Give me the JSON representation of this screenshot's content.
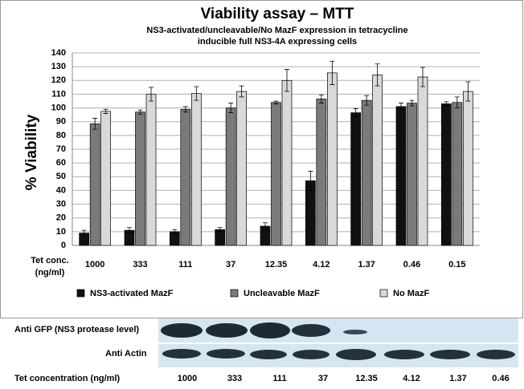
{
  "chart_data": {
    "type": "bar",
    "title": "Viability assay – MTT",
    "subtitle": [
      "NS3-activated/uncleavable/No MazF expression in tetracycline",
      "inducible full NS3-4A expressing cells"
    ],
    "y_label": "% Viability",
    "x_label": [
      "Tet conc.",
      "(ng/ml)"
    ],
    "categories": [
      "1000",
      "333",
      "111",
      "37",
      "12.35",
      "4.12",
      "1.37",
      "0.46",
      "0.15"
    ],
    "series": [
      {
        "name": "NS3-activated MazF",
        "color": "#111111",
        "values": [
          9,
          11,
          10,
          11.5,
          14,
          47,
          96.5,
          101,
          103
        ],
        "errors": [
          2,
          2,
          1.5,
          1.5,
          2.5,
          7,
          3,
          2.5,
          1.5
        ]
      },
      {
        "name": "Uncleavable MazF",
        "color": "#7a7a7a",
        "values": [
          88.5,
          97,
          99,
          100,
          104,
          106.5,
          105.5,
          103.5,
          104
        ],
        "errors": [
          4,
          1.5,
          2,
          3.5,
          1,
          3,
          3.5,
          2,
          4
        ]
      },
      {
        "name": "No MazF",
        "color": "#d9d9d9",
        "values": [
          97.5,
          110,
          110.5,
          112,
          120,
          125.5,
          124,
          122.5,
          112
        ],
        "errors": [
          1.5,
          5,
          5,
          4,
          8,
          8.5,
          8,
          7,
          7
        ]
      }
    ],
    "ylim": [
      0,
      140
    ],
    "yticks": [
      0,
      10,
      20,
      30,
      40,
      50,
      60,
      70,
      80,
      90,
      100,
      110,
      120,
      130,
      140
    ],
    "grid": true
  },
  "blot": {
    "rows": [
      "Anti GFP (NS3 protease level)",
      "Anti Actin"
    ],
    "x_label": "Tet concentration (ng/ml)",
    "lanes": [
      "1000",
      "333",
      "111",
      "37",
      "12.35",
      "4.12",
      "1.37",
      "0.46"
    ]
  }
}
